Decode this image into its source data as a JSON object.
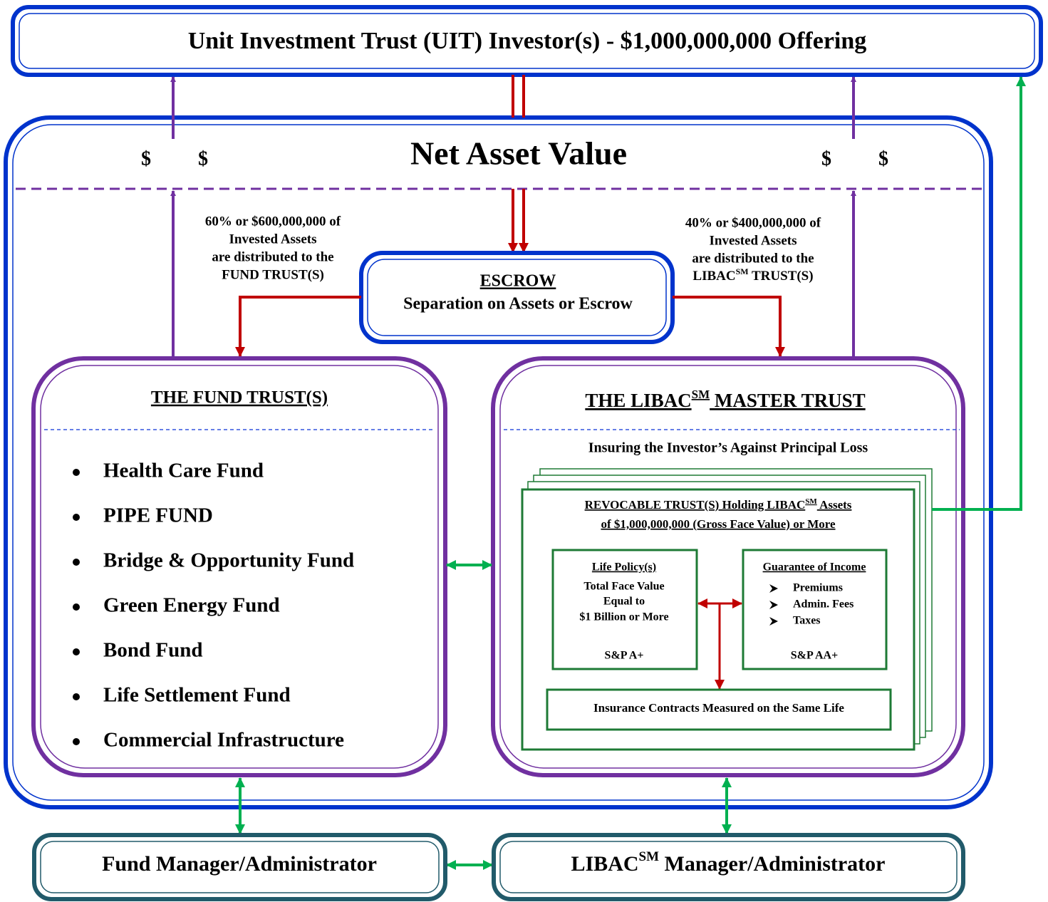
{
  "header": {
    "title": "Unit Investment Trust (UIT) Investor(s) - $1,000,000,000 Offering"
  },
  "nav": {
    "title": "Net Asset Value",
    "symbols": [
      "$",
      "$",
      "$",
      "$"
    ]
  },
  "left_note": {
    "lines": [
      "60% or $600,000,000 of",
      "Invested Assets",
      "are distributed to the",
      "FUND TRUST(S)"
    ]
  },
  "right_note": {
    "lines": [
      "40% or $400,000,000 of",
      "Invested Assets",
      "are distributed to the"
    ],
    "last_line": [
      "LIBAC",
      "SM",
      " TRUST(S)"
    ]
  },
  "escrow": {
    "title": "ESCROW",
    "subtitle": "Separation on Assets or Escrow"
  },
  "fund_trust": {
    "title": "THE FUND TRUST(S)",
    "items": [
      "Health Care Fund",
      "PIPE FUND",
      "Bridge & Opportunity Fund",
      "Green Energy Fund",
      "Bond Fund",
      "Life Settlement Fund",
      "Commercial Infrastructure"
    ]
  },
  "libac_trust": {
    "title": [
      "THE LIBAC",
      "SM",
      " MASTER TRUST"
    ],
    "subtitle": "Insuring the Investor’s Against Principal Loss"
  },
  "revocable": {
    "line1": [
      "REVOCABLE TRUST(S) Holding LIBAC",
      "SM",
      " Assets"
    ],
    "line2": "of $1,000,000,000 (Gross Face Value) or More"
  },
  "life_policy": {
    "title": "Life Policy(s)",
    "lines": [
      "Total Face Value",
      "Equal to",
      "$1 Billion or More"
    ],
    "rating": "S&P A+"
  },
  "guarantee": {
    "title": "Guarantee of Income",
    "items": [
      "Premiums",
      "Admin. Fees",
      "Taxes"
    ],
    "rating": "S&P AA+"
  },
  "contracts": {
    "label": "Insurance Contracts Measured on the Same Life"
  },
  "managers": {
    "fund": "Fund Manager/Administrator",
    "libac": [
      "LIBAC",
      "SM",
      " Manager/Administrator"
    ]
  }
}
